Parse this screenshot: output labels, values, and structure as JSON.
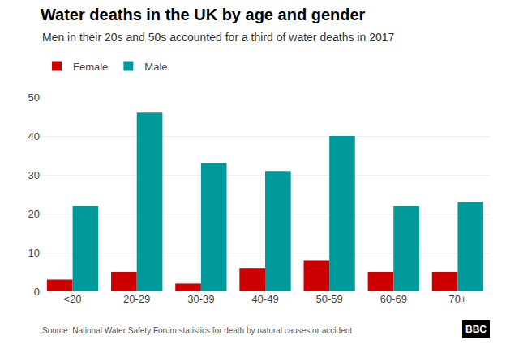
{
  "chart_data": {
    "type": "bar",
    "title": "Water deaths in the UK by age and gender",
    "subtitle": "Men in their 20s and 50s accounted for a third of water deaths in 2017",
    "categories": [
      "<20",
      "20-29",
      "30-39",
      "40-49",
      "50-59",
      "60-69",
      "70+"
    ],
    "series": [
      {
        "name": "Female",
        "color": "#cc0000",
        "values": [
          3,
          5,
          2,
          6,
          8,
          5,
          5
        ]
      },
      {
        "name": "Male",
        "color": "#009999",
        "values": [
          22,
          46,
          33,
          31,
          40,
          22,
          23
        ]
      }
    ],
    "ylim": [
      0,
      50
    ],
    "yticks": [
      0,
      10,
      20,
      30,
      40,
      50
    ],
    "grid": true,
    "legend": "upper left",
    "annotations": [
      "Source: National Water Safety Forum statistics for death by natural causes or accident",
      "BBC"
    ]
  }
}
